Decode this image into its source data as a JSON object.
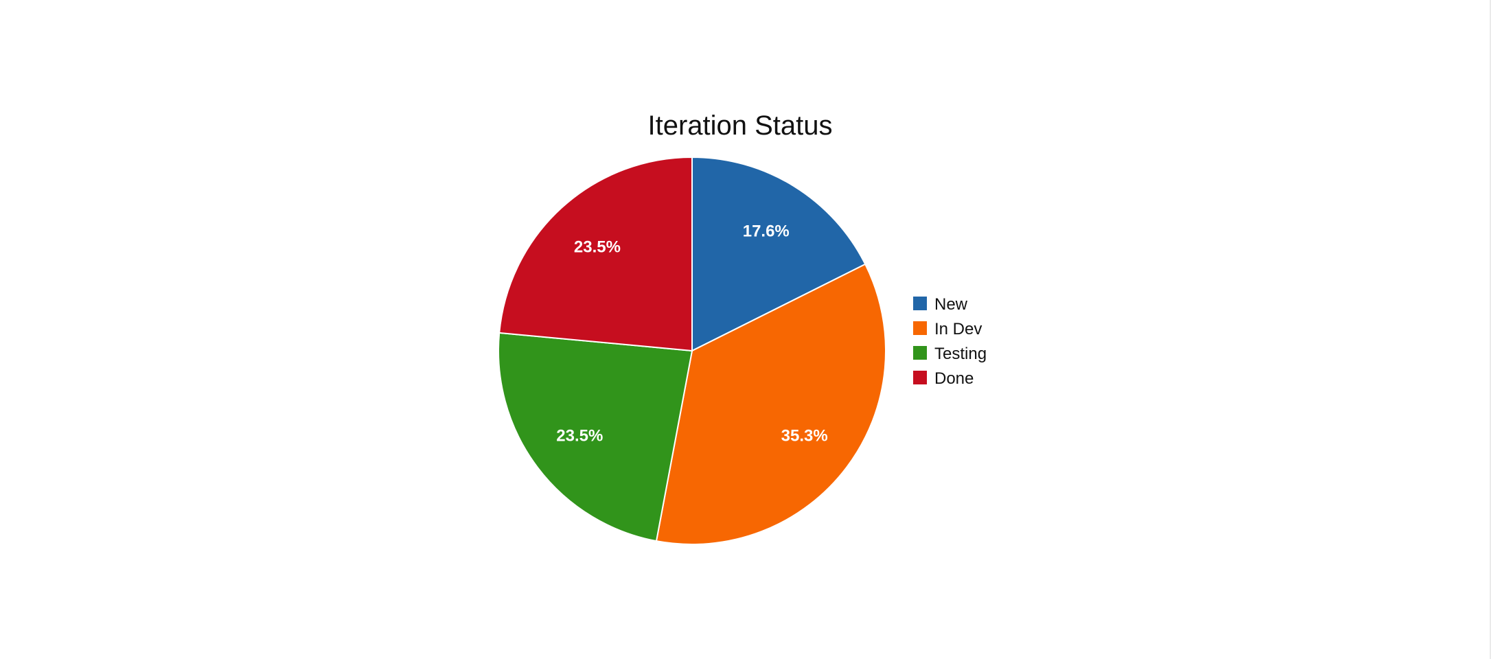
{
  "chart_data": {
    "type": "pie",
    "title": "Iteration Status",
    "categories": [
      "New",
      "In Dev",
      "Testing",
      "Done"
    ],
    "values": [
      17.6,
      35.3,
      23.5,
      23.5
    ],
    "labels": [
      "17.6%",
      "35.3%",
      "23.5%",
      "23.5%"
    ],
    "colors": [
      "#2166a8",
      "#f76702",
      "#31941b",
      "#c60e1f"
    ],
    "legend_placement": "right"
  }
}
